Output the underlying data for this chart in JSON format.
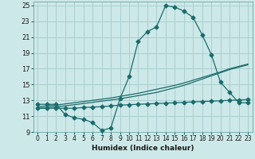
{
  "xlabel": "Humidex (Indice chaleur)",
  "background_color": "#cde8e8",
  "grid_color": "#aacfcf",
  "line_color": "#1a6b6b",
  "xlim": [
    -0.5,
    23.5
  ],
  "ylim": [
    9,
    25.5
  ],
  "xticks": [
    0,
    1,
    2,
    3,
    4,
    5,
    6,
    7,
    8,
    9,
    10,
    11,
    12,
    13,
    14,
    15,
    16,
    17,
    18,
    19,
    20,
    21,
    22,
    23
  ],
  "yticks": [
    9,
    11,
    13,
    15,
    17,
    19,
    21,
    23,
    25
  ],
  "line1_x": [
    0,
    1,
    2,
    3,
    4,
    5,
    6,
    7,
    8,
    9,
    10,
    11,
    12,
    13,
    14,
    15,
    16,
    17,
    18,
    19,
    20,
    21,
    22,
    23
  ],
  "line1_y": [
    12.5,
    12.5,
    12.5,
    11.2,
    10.8,
    10.6,
    10.2,
    9.2,
    9.5,
    13.2,
    16.0,
    20.5,
    21.7,
    22.3,
    25.0,
    24.8,
    24.3,
    23.5,
    21.3,
    18.8,
    15.3,
    14.0,
    12.7,
    12.7
  ],
  "line2_x": [
    0,
    1,
    2,
    3,
    4,
    5,
    6,
    7,
    8,
    9,
    10,
    11,
    12,
    13,
    14,
    15,
    16,
    17,
    18,
    19,
    20,
    21,
    22,
    23
  ],
  "line2_y": [
    12.0,
    12.1,
    12.2,
    12.3,
    12.45,
    12.6,
    12.75,
    12.9,
    13.05,
    13.2,
    13.4,
    13.6,
    13.8,
    14.0,
    14.3,
    14.6,
    14.9,
    15.3,
    15.7,
    16.1,
    16.5,
    16.9,
    17.2,
    17.5
  ],
  "line3_x": [
    0,
    1,
    2,
    3,
    4,
    5,
    6,
    7,
    8,
    9,
    10,
    11,
    12,
    13,
    14,
    15,
    16,
    17,
    18,
    19,
    20,
    21,
    22,
    23
  ],
  "line3_y": [
    12.2,
    12.3,
    12.4,
    12.55,
    12.7,
    12.85,
    13.0,
    13.15,
    13.3,
    13.5,
    13.7,
    13.9,
    14.15,
    14.4,
    14.65,
    14.9,
    15.2,
    15.55,
    15.9,
    16.25,
    16.6,
    17.0,
    17.3,
    17.6
  ],
  "line4_x": [
    0,
    1,
    2,
    3,
    4,
    5,
    6,
    7,
    8,
    9,
    10,
    11,
    12,
    13,
    14,
    15,
    16,
    17,
    18,
    19,
    20,
    21,
    22,
    23
  ],
  "line4_y": [
    12.0,
    12.0,
    12.0,
    12.0,
    12.0,
    12.1,
    12.15,
    12.2,
    12.3,
    12.4,
    12.45,
    12.5,
    12.55,
    12.6,
    12.65,
    12.7,
    12.75,
    12.8,
    12.85,
    12.9,
    12.95,
    13.0,
    13.05,
    13.1
  ]
}
